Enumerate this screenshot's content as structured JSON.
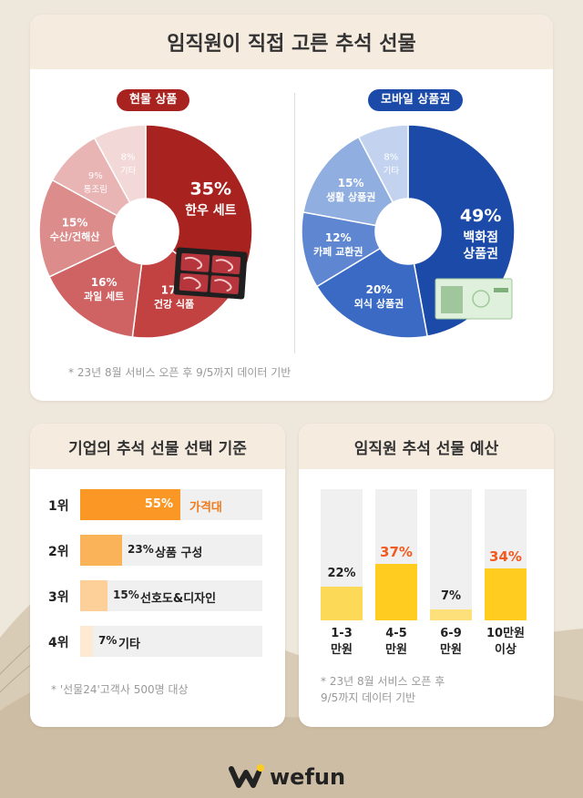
{
  "header": {
    "title": "임직원이 직접 고른 추석 선물"
  },
  "physical": {
    "label": "현물 상품"
  },
  "mobile": {
    "label": "모바일 상품권"
  },
  "top_note": "* 23년 8월 서비스 오픈 후 9/5까지 데이터 기반",
  "criteria": {
    "title": "기업의 추석 선물 선택 기준",
    "note": "* '선물24'고객사 500명 대상"
  },
  "budget": {
    "title": "임직원 추석 선물 예산",
    "note": "* 23년 8월 서비스 오픈 후\n9/5까지 데이터 기반"
  },
  "logo": {
    "text": "wefun"
  },
  "colors": {
    "accent_orange": "#f07a1a",
    "red": "#a8231f",
    "blue": "#1b4aa8",
    "yellow": "#ffd02a"
  },
  "chart_data": [
    {
      "type": "pie",
      "categories": [
        "한우 세트",
        "건강 식품",
        "과일 세트",
        "수산/건해산",
        "통조림",
        "기타"
      ],
      "values": [
        35,
        17,
        16,
        15,
        9,
        8
      ],
      "value_labels": [
        "35%",
        "17%",
        "16%",
        "15%",
        "9%",
        "8%"
      ],
      "colors": [
        "#a8231f",
        "#c24141",
        "#cf6364",
        "#dd8c8c",
        "#e9b4b4",
        "#f3d8d8"
      ],
      "text_colors": [
        "#ffffff",
        "#ffffff",
        "#ffffff",
        "#ffffff",
        "#ffffff",
        "#ffffff"
      ]
    },
    {
      "type": "pie",
      "categories": [
        "백화점\n상품권",
        "외식 상품권",
        "카페 교환권",
        "생활 상품권",
        "기타"
      ],
      "values": [
        49,
        20,
        12,
        15,
        8
      ],
      "value_labels": [
        "49%",
        "20%",
        "12%",
        "15%",
        "8%"
      ],
      "colors": [
        "#1b4aa8",
        "#3a6ac4",
        "#5f86d0",
        "#90aee0",
        "#c3d3ef"
      ],
      "text_colors": [
        "#ffffff",
        "#ffffff",
        "#ffffff",
        "#ffffff",
        "#ffffff"
      ]
    },
    {
      "type": "bar",
      "orientation": "horizontal",
      "categories": [
        "1위",
        "2위",
        "3위",
        "4위"
      ],
      "labels": [
        "가격대",
        "상품 구성",
        "선호도&디자인",
        "기타"
      ],
      "values": [
        55,
        23,
        15,
        7
      ],
      "value_labels": [
        "55%",
        "23%",
        "15%",
        "7%"
      ],
      "colors": [
        "#fb9724",
        "#fbb35a",
        "#fdd09a",
        "#feead2"
      ],
      "xlim": [
        0,
        100
      ]
    },
    {
      "type": "bar",
      "orientation": "vertical",
      "categories": [
        "1-3\n만원",
        "4-5\n만원",
        "6-9\n만원",
        "10만원\n이상"
      ],
      "values": [
        22,
        37,
        7,
        34
      ],
      "value_labels": [
        "22%",
        "37%",
        "7%",
        "34%"
      ],
      "value_label_colors": [
        "#222222",
        "#f25a1f",
        "#222222",
        "#f25a1f"
      ],
      "colors": [
        "#fcd957",
        "#ffcc1f",
        "#fde07a",
        "#ffcc1f"
      ],
      "ylim": [
        0,
        100
      ]
    }
  ]
}
